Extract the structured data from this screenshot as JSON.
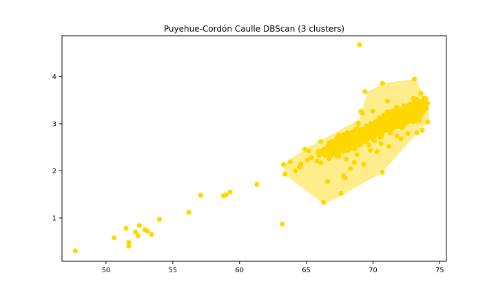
{
  "chart_data": {
    "type": "scatter",
    "title": "Puyehue-Cordón Caulle DBScan (3 clusters)",
    "xlabel": "",
    "ylabel": "",
    "xlim": [
      46.7,
      75.5
    ],
    "ylim": [
      0.08,
      4.87
    ],
    "xticks": [
      50,
      55,
      60,
      65,
      70,
      75
    ],
    "yticks": [
      1,
      2,
      3,
      4
    ],
    "grid": false,
    "colors": {
      "points": "#ffd700",
      "hull_fill": "#ffd700",
      "axes": "#000000",
      "background": "#ffffff"
    },
    "hull_opacity": 0.45,
    "cluster_hull": [
      [
        63.3,
        2.15
      ],
      [
        65.0,
        2.48
      ],
      [
        69.0,
        3.1
      ],
      [
        69.6,
        3.68
      ],
      [
        70.8,
        3.87
      ],
      [
        73.2,
        3.95
      ],
      [
        74.2,
        3.37
      ],
      [
        74.2,
        3.05
      ],
      [
        73.3,
        2.8
      ],
      [
        70.7,
        1.97
      ],
      [
        67.5,
        1.45
      ],
      [
        66.3,
        1.3
      ],
      [
        63.4,
        1.92
      ]
    ],
    "scattered_points": [
      [
        47.7,
        0.3
      ],
      [
        50.6,
        0.58
      ],
      [
        51.5,
        0.78
      ],
      [
        51.7,
        0.4
      ],
      [
        51.7,
        0.48
      ],
      [
        52.2,
        0.7
      ],
      [
        52.4,
        0.62
      ],
      [
        52.5,
        0.84
      ],
      [
        52.9,
        0.75
      ],
      [
        53.1,
        0.72
      ],
      [
        53.4,
        0.65
      ],
      [
        54.0,
        0.97
      ],
      [
        56.2,
        1.12
      ],
      [
        57.1,
        1.48
      ],
      [
        58.8,
        1.47
      ],
      [
        59.0,
        1.49
      ],
      [
        59.3,
        1.55
      ],
      [
        61.3,
        1.71
      ],
      [
        63.2,
        0.87
      ],
      [
        63.3,
        2.13
      ],
      [
        63.4,
        1.93
      ],
      [
        63.8,
        2.19
      ],
      [
        64.2,
        2.0
      ],
      [
        64.5,
        2.08
      ],
      [
        64.6,
        2.14
      ],
      [
        64.9,
        2.46
      ],
      [
        65.2,
        2.42
      ],
      [
        65.1,
        2.23
      ],
      [
        65.4,
        2.28
      ],
      [
        65.8,
        2.21
      ],
      [
        65.9,
        2.41
      ],
      [
        66.1,
        2.17
      ],
      [
        66.3,
        1.33
      ],
      [
        66.6,
        1.77
      ],
      [
        66.6,
        2.52
      ],
      [
        66.8,
        2.35
      ],
      [
        67.1,
        2.58
      ],
      [
        67.3,
        2.31
      ],
      [
        67.5,
        2.63
      ],
      [
        67.6,
        1.52
      ],
      [
        67.8,
        1.9
      ],
      [
        67.9,
        1.85
      ],
      [
        68.0,
        2.25
      ],
      [
        68.2,
        2.46
      ],
      [
        68.3,
        2.05
      ],
      [
        68.5,
        2.71
      ],
      [
        68.6,
        2.18
      ],
      [
        68.8,
        2.34
      ],
      [
        68.9,
        3.01
      ],
      [
        69.0,
        4.68
      ],
      [
        69.1,
        3.26
      ],
      [
        69.2,
        3.22
      ],
      [
        69.3,
        2.14
      ],
      [
        69.4,
        3.68
      ],
      [
        69.5,
        2.96
      ],
      [
        69.7,
        2.55
      ],
      [
        69.8,
        2.44
      ],
      [
        70.0,
        3.27
      ],
      [
        70.1,
        2.64
      ],
      [
        70.2,
        3.02
      ],
      [
        70.3,
        2.41
      ],
      [
        70.5,
        3.13
      ],
      [
        70.6,
        2.58
      ],
      [
        70.7,
        3.86
      ],
      [
        70.7,
        1.97
      ],
      [
        70.9,
        2.86
      ],
      [
        71.0,
        3.18
      ],
      [
        71.1,
        3.48
      ],
      [
        71.2,
        2.52
      ],
      [
        71.4,
        2.93
      ],
      [
        71.6,
        3.05
      ],
      [
        71.8,
        2.74
      ],
      [
        72.0,
        3.27
      ],
      [
        72.1,
        2.68
      ],
      [
        72.3,
        3.38
      ],
      [
        72.5,
        3.14
      ],
      [
        72.6,
        2.79
      ],
      [
        72.8,
        3.42
      ],
      [
        72.9,
        3.28
      ],
      [
        73.1,
        3.95
      ],
      [
        73.2,
        3.18
      ],
      [
        73.3,
        2.81
      ],
      [
        73.5,
        3.07
      ],
      [
        73.6,
        3.19
      ],
      [
        73.7,
        2.86
      ],
      [
        73.8,
        3.29
      ],
      [
        74.0,
        3.35
      ],
      [
        74.1,
        3.04
      ]
    ],
    "dense_cluster": {
      "x_start": 66.0,
      "x_end": 73.9,
      "slope": 0.13,
      "y_at_start": 2.36,
      "spread": 0.17,
      "count": 560
    }
  }
}
